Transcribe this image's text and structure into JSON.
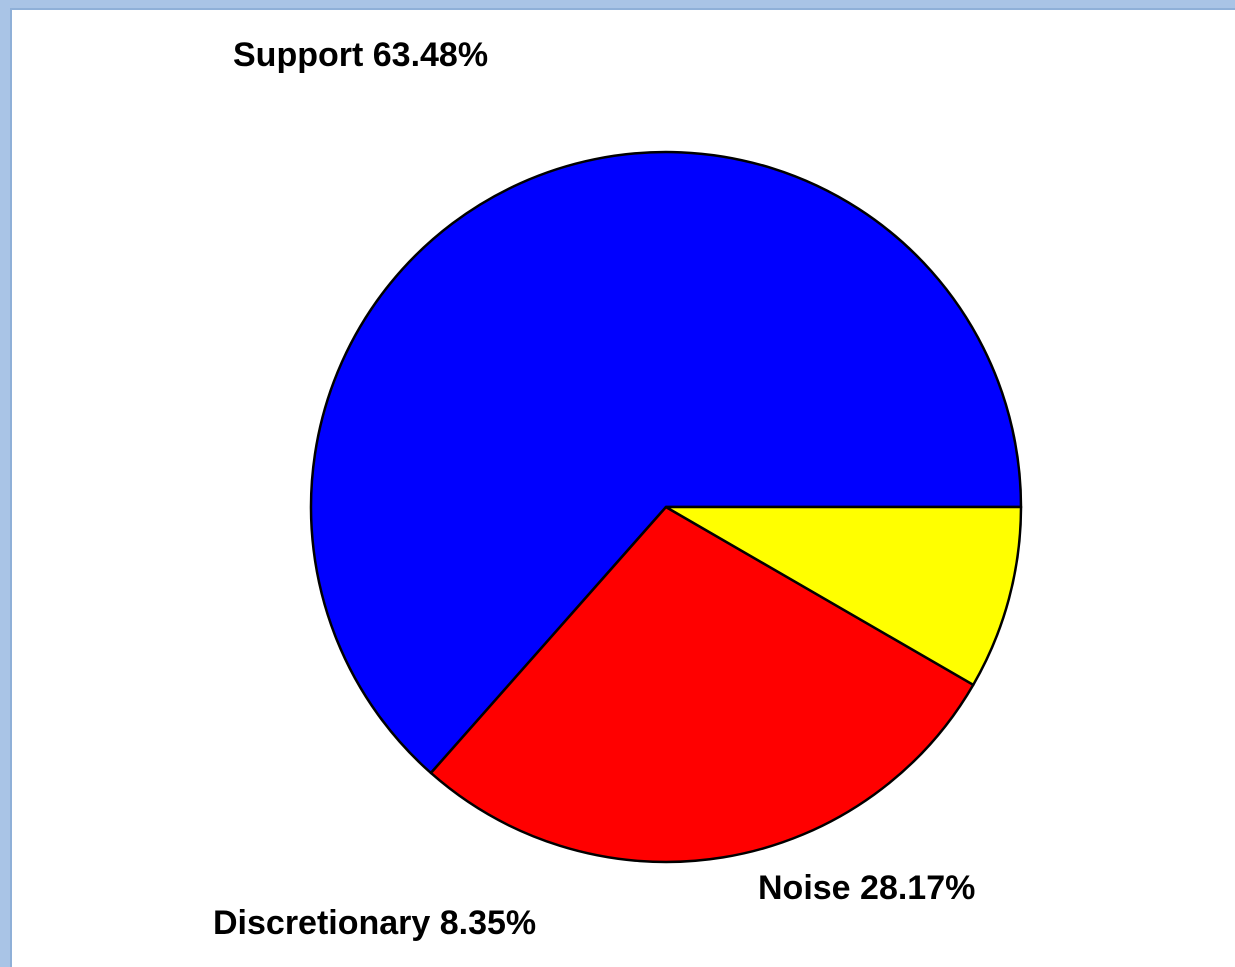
{
  "chart_data": {
    "type": "pie",
    "slices": [
      {
        "label": "Support 63.48%",
        "name": "Support",
        "value": 63.48,
        "color": "#0000ff"
      },
      {
        "label": "Noise 28.17%",
        "name": "Noise",
        "value": 28.17,
        "color": "#ff0000"
      },
      {
        "label": "Discretionary 8.35%",
        "name": "Discretionary",
        "value": 8.35,
        "color": "#ffff00"
      }
    ],
    "start_angle_deg": 0,
    "direction": "counterclockwise",
    "outline_color": "#000000"
  }
}
